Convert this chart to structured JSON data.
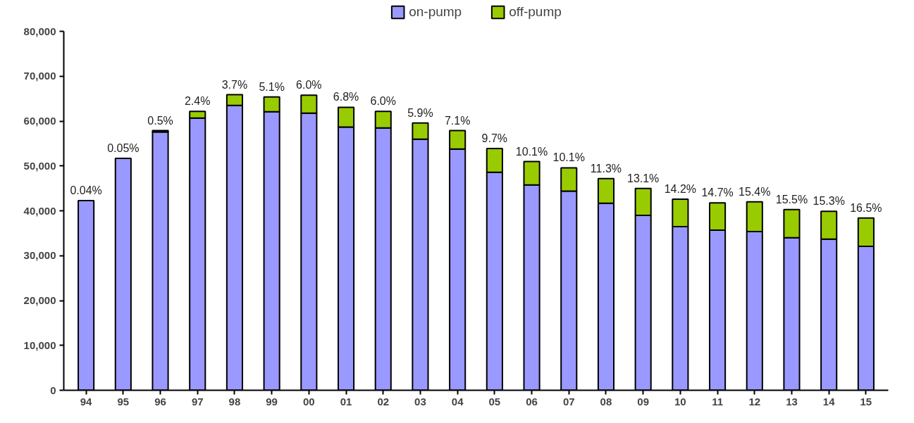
{
  "chart_data": {
    "type": "bar",
    "stacked": true,
    "categories": [
      "94",
      "95",
      "96",
      "97",
      "98",
      "99",
      "00",
      "01",
      "02",
      "03",
      "04",
      "05",
      "06",
      "07",
      "08",
      "09",
      "10",
      "11",
      "12",
      "13",
      "14",
      "15"
    ],
    "series": [
      {
        "name": "on-pump",
        "color": "#9999ff",
        "values": [
          42300,
          51700,
          57600,
          60700,
          63500,
          62100,
          61800,
          58700,
          58500,
          56000,
          53800,
          48600,
          45800,
          44400,
          41700,
          39000,
          36500,
          35700,
          35400,
          34000,
          33700,
          32100
        ]
      },
      {
        "name": "off-pump",
        "color": "#99cc00",
        "values": [
          0,
          0,
          300,
          1500,
          2400,
          3300,
          4000,
          4400,
          3700,
          3600,
          4100,
          5300,
          5200,
          5200,
          5500,
          6000,
          6100,
          6100,
          6600,
          6300,
          6200,
          6300
        ]
      }
    ],
    "annotations": [
      {
        "text": "0.04%",
        "x": "94",
        "y": 42300
      },
      {
        "text": "0.05%",
        "x": "95",
        "y": 51700
      },
      {
        "text": "0.5%",
        "x": "96",
        "y": 57900
      },
      {
        "text": "2.4%",
        "x": "97",
        "y": 62200
      },
      {
        "text": "3.7%",
        "x": "98",
        "y": 65900
      },
      {
        "text": "5.1%",
        "x": "99",
        "y": 65400
      },
      {
        "text": "6.0%",
        "x": "00",
        "y": 65800
      },
      {
        "text": "6.8%",
        "x": "01",
        "y": 63100
      },
      {
        "text": "6.0%",
        "x": "02",
        "y": 62200
      },
      {
        "text": "5.9%",
        "x": "03",
        "y": 59600
      },
      {
        "text": "7.1%",
        "x": "04",
        "y": 57900
      },
      {
        "text": "9.7%",
        "x": "05",
        "y": 53900
      },
      {
        "text": "10.1%",
        "x": "06",
        "y": 51000
      },
      {
        "text": "10.1%",
        "x": "07",
        "y": 49600
      },
      {
        "text": "11.3%",
        "x": "08",
        "y": 47200
      },
      {
        "text": "13.1%",
        "x": "09",
        "y": 45000
      },
      {
        "text": "14.2%",
        "x": "10",
        "y": 42600
      },
      {
        "text": "14.7%",
        "x": "11",
        "y": 41800
      },
      {
        "text": "15.4%",
        "x": "12",
        "y": 42000
      },
      {
        "text": "15.5%",
        "x": "13",
        "y": 40300
      },
      {
        "text": "15.3%",
        "x": "14",
        "y": 39900
      },
      {
        "text": "16.5%",
        "x": "15",
        "y": 38400
      }
    ],
    "ylim": [
      0,
      80000
    ],
    "yticks": [
      {
        "value": 0,
        "label": "0"
      },
      {
        "value": 10000,
        "label": "10,000"
      },
      {
        "value": 20000,
        "label": "20,000"
      },
      {
        "value": 30000,
        "label": "30,000"
      },
      {
        "value": 40000,
        "label": "40,000"
      },
      {
        "value": 50000,
        "label": "50,000"
      },
      {
        "value": 60000,
        "label": "60,000"
      },
      {
        "value": 70000,
        "label": "70,000"
      },
      {
        "value": 80000,
        "label": "80,000"
      }
    ],
    "grid": false,
    "legend": "top"
  }
}
